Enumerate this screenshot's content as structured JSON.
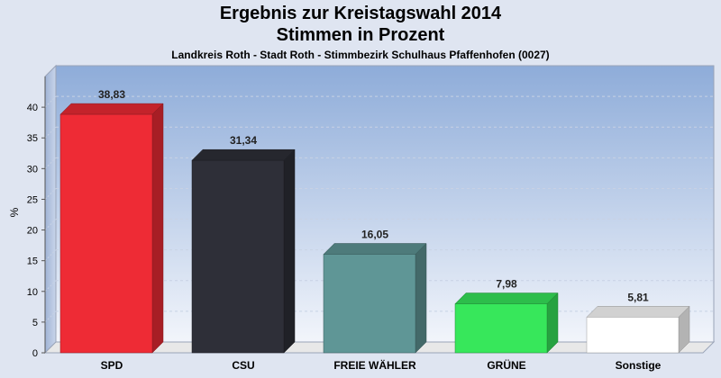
{
  "chart_data": {
    "type": "bar",
    "title": "Ergebnis zur Kreistagswahl 2014",
    "title_line2": "Stimmen in Prozent",
    "subtitle": "Landkreis Roth - Stadt Roth - Stimmbezirk Schulhaus Pfaffenhofen (0027)",
    "ylabel": "%",
    "ylim": [
      0,
      45
    ],
    "yticks": [
      0,
      5,
      10,
      15,
      20,
      25,
      30,
      35,
      40
    ],
    "grid": true,
    "categories": [
      "SPD",
      "CSU",
      "FREIE WÄHLER",
      "GRÜNE",
      "Sonstige"
    ],
    "values": [
      38.83,
      31.34,
      16.05,
      7.98,
      5.81
    ],
    "value_labels": [
      "38,83",
      "31,34",
      "16,05",
      "7,98",
      "5,81"
    ],
    "colors": [
      "#ee2b35",
      "#2e2f38",
      "#5f9696",
      "#37e75b",
      "#ffffff"
    ]
  }
}
